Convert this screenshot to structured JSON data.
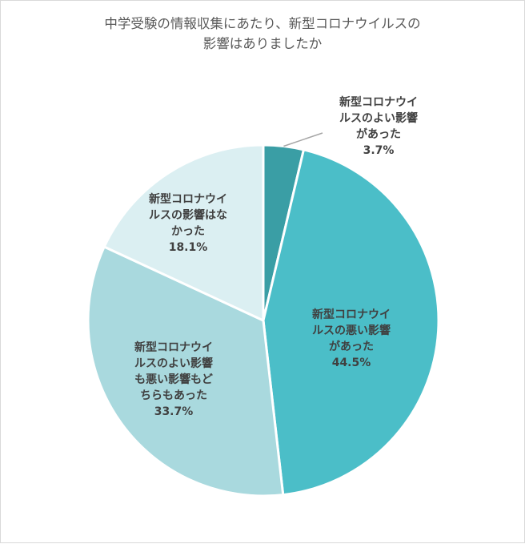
{
  "chart_data": {
    "type": "pie",
    "title_lines": [
      "中学受験の情報収集にあたり、新型コロナウイルスの",
      "影響はありましたか"
    ],
    "slices": [
      {
        "lines": [
          "新型コロナウイ",
          "ルスのよい影響",
          "があった"
        ],
        "value_label": "3.7%",
        "value": 3.7,
        "color": "#3a9ea5"
      },
      {
        "lines": [
          "新型コロナウイ",
          "ルスの悪い影響",
          "があった"
        ],
        "value_label": "44.5%",
        "value": 44.5,
        "color": "#4bbec8"
      },
      {
        "lines": [
          "新型コロナウイ",
          "ルスのよい影響",
          "も悪い影響もど",
          "ちらもあった"
        ],
        "value_label": "33.7%",
        "value": 33.7,
        "color": "#a9d9de"
      },
      {
        "lines": [
          "新型コロナウイ",
          "ルスの影響はな",
          "かった"
        ],
        "value_label": "18.1%",
        "value": 18.1,
        "color": "#dbeff2"
      }
    ]
  }
}
